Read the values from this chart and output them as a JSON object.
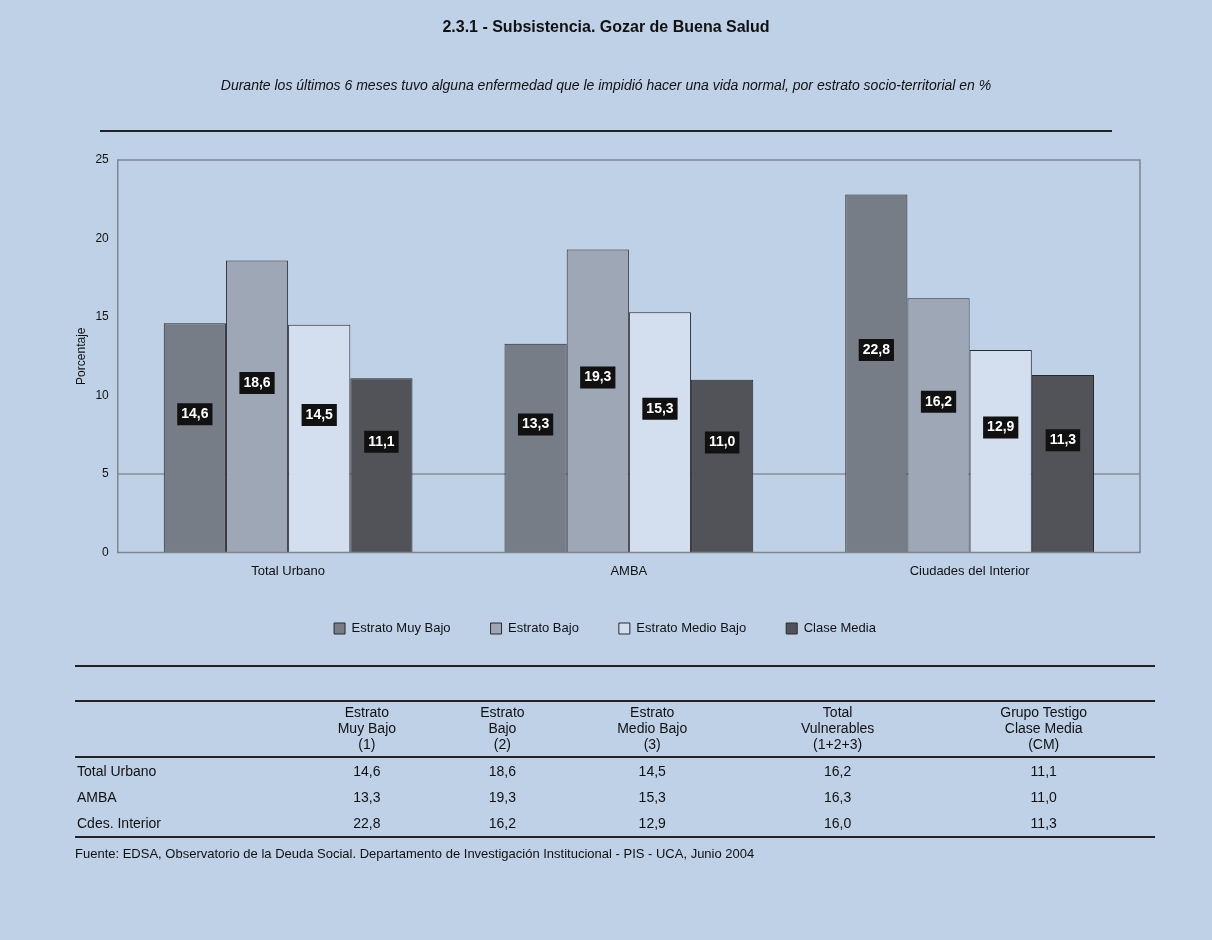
{
  "chart_data": [
    {
      "type": "bar",
      "title": "2.3.1 - Subsistencia. Gozar de Buena Salud",
      "subtitle": "Durante los últimos 6 meses tuvo alguna enfermedad que le impidió hacer una vida normal, por estrato socio-territorial en %",
      "ylabel": "Porcentaje",
      "categories": [
        "Total Urbano",
        "AMBA",
        "Ciudades del Interior"
      ],
      "ylim": [
        0,
        25
      ],
      "yticks": [
        0,
        5,
        10,
        15,
        20,
        25
      ],
      "legend": "bottom",
      "data_labels": true,
      "ref_lines": [
        {
          "axis": "y",
          "value": 5,
          "color": "#8a8f96"
        }
      ],
      "series": [
        {
          "name": "Estrato Muy Bajo",
          "color": "#767d87",
          "values": [
            14.6,
            13.3,
            22.8
          ],
          "value_labels": [
            "14,6",
            "13,3",
            "22,8"
          ]
        },
        {
          "name": "Estrato Bajo",
          "color": "#9da7b6",
          "values": [
            18.6,
            19.3,
            16.2
          ],
          "value_labels": [
            "18,6",
            "19,3",
            "16,2"
          ]
        },
        {
          "name": "Estrato Medio Bajo",
          "color": "#d3deee",
          "values": [
            14.5,
            15.3,
            12.9
          ],
          "value_labels": [
            "14,5",
            "15,3",
            "12,9"
          ]
        },
        {
          "name": "Clase Media",
          "color": "#515358",
          "values": [
            11.1,
            11.0,
            11.3
          ],
          "value_labels": [
            "11,1",
            "11,0",
            "11,3"
          ]
        }
      ]
    },
    {
      "type": "other",
      "categories": [
        "Estrato\nMuy Bajo\n(1)",
        "Estrato\nBajo\n(2)",
        "Estrato\nMedio Bajo\n(3)",
        "Total\nVulnerables\n(1+2+3)",
        "Grupo Testigo\nClase Media\n(CM)"
      ],
      "annotations": [
        "Fuente: EDSA, Observatorio de la Deuda Social. Departamento de Investigación Institucional - PIS - UCA, Junio 2004"
      ],
      "series": [
        {
          "name": "Total Urbano",
          "values": [
            14.6,
            18.6,
            14.5,
            16.2,
            11.1
          ],
          "value_labels": [
            "14,6",
            "18,6",
            "14,5",
            "16,2",
            "11,1"
          ]
        },
        {
          "name": "AMBA",
          "values": [
            13.3,
            19.3,
            15.3,
            16.3,
            11.0
          ],
          "value_labels": [
            "13,3",
            "19,3",
            "15,3",
            "16,3",
            "11,0"
          ]
        },
        {
          "name": "Cdes. Interior",
          "values": [
            22.8,
            16.2,
            12.9,
            16.0,
            11.3
          ],
          "value_labels": [
            "22,8",
            "16,2",
            "12,9",
            "16,0",
            "11,3"
          ]
        }
      ]
    }
  ]
}
